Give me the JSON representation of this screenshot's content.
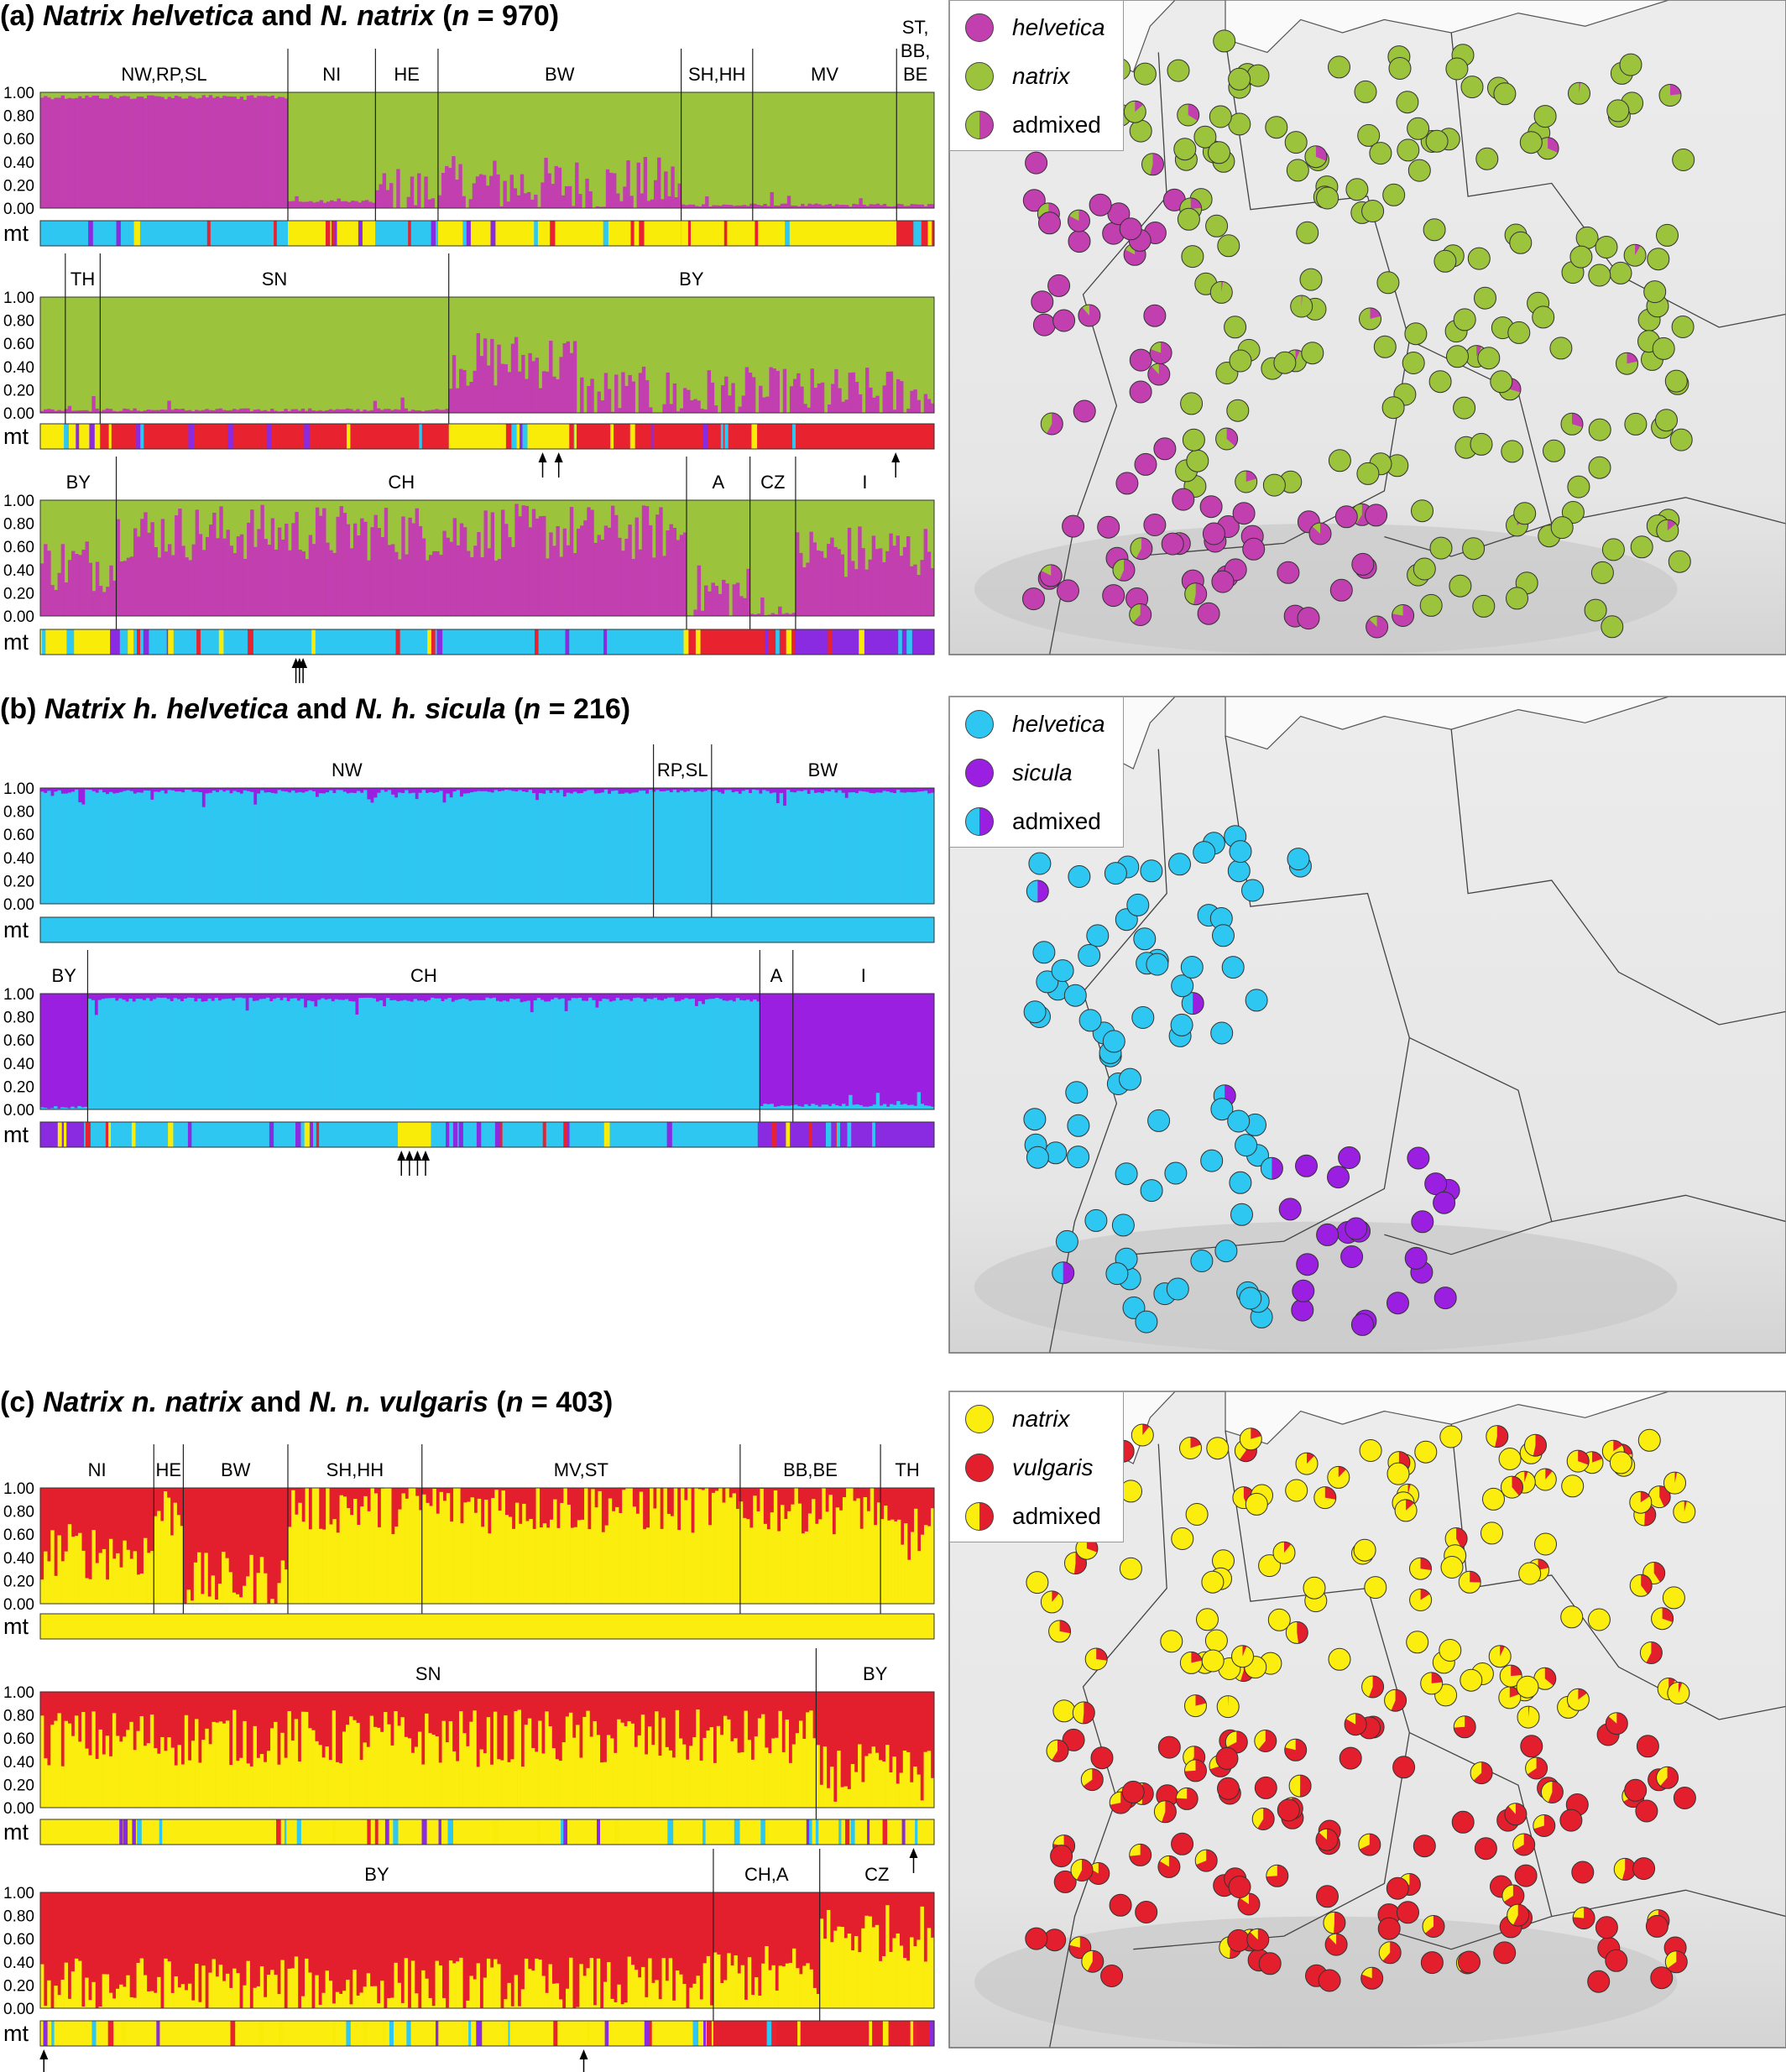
{
  "colors": {
    "helvetica": "#c23fb0",
    "natrix_green": "#9bc43c",
    "mt_cyan": "#2ec7f2",
    "mt_yellow": "#f8ec08",
    "mt_red": "#e8222e",
    "mt_purple": "#8a2be2",
    "sicula": "#9a1fe0",
    "natrix_yellow": "#fbee0e",
    "vulgaris": "#e41f2d"
  },
  "panels": [
    {
      "id": "a",
      "title_prefix": "(a) ",
      "title_s1": "Natrix helvetica",
      "title_mid": " and ",
      "title_s2": "N. natrix",
      "title_n_open": " (",
      "title_n_label": "n",
      "title_n_value": " = 970)",
      "legend": [
        {
          "label": "helvetica",
          "italic": true,
          "type": "helvetica"
        },
        {
          "label": "natrix",
          "italic": true,
          "type": "natrix_green"
        },
        {
          "label": "admixed",
          "italic": false,
          "type": "admixed_a"
        }
      ]
    },
    {
      "id": "b",
      "title_prefix": "(b) ",
      "title_s1": "Natrix h. helvetica",
      "title_mid": " and ",
      "title_s2": "N. h. sicula",
      "title_n_open": " (",
      "title_n_label": "n",
      "title_n_value": " = 216)",
      "legend": [
        {
          "label": "helvetica",
          "italic": true,
          "type": "mt_cyan"
        },
        {
          "label": "sicula",
          "italic": true,
          "type": "sicula"
        },
        {
          "label": "admixed",
          "italic": false,
          "type": "admixed_b"
        }
      ]
    },
    {
      "id": "c",
      "title_prefix": "(c) ",
      "title_s1": "Natrix n. natrix",
      "title_mid": " and ",
      "title_s2": "N. n. vulgaris",
      "title_n_open": " (",
      "title_n_label": "n",
      "title_n_value": " = 403)",
      "legend": [
        {
          "label": "natrix",
          "italic": true,
          "type": "natrix_yellow"
        },
        {
          "label": "vulgaris",
          "italic": true,
          "type": "vulgaris"
        },
        {
          "label": "admixed",
          "italic": false,
          "type": "admixed_c"
        }
      ]
    }
  ],
  "chart_data": [
    {
      "type": "bar",
      "subtype": "structure-plot",
      "panel": "a",
      "row": 1,
      "ylim": [
        0,
        1
      ],
      "yticks": [
        "1.00",
        "0.80",
        "0.60",
        "0.40",
        "0.20",
        "0.00"
      ],
      "mt_label": "mt",
      "bg_color": "natrix_green",
      "fg_color": "helvetica",
      "groups": [
        {
          "label": "NW,RP,SL",
          "start": 0.0,
          "end": 0.277
        },
        {
          "label": "NI",
          "start": 0.277,
          "end": 0.375
        },
        {
          "label": "HE",
          "start": 0.375,
          "end": 0.445
        },
        {
          "label": "BW",
          "start": 0.445,
          "end": 0.717
        },
        {
          "label": "SH,HH",
          "start": 0.717,
          "end": 0.797
        },
        {
          "label": "MV",
          "start": 0.797,
          "end": 0.958
        },
        {
          "label": "ST,\nBB,\nBE",
          "start": 0.958,
          "end": 1.0
        }
      ],
      "admixture_segments": [
        {
          "start": 0.0,
          "end": 0.277,
          "value": 0.98
        },
        {
          "start": 0.277,
          "end": 0.375,
          "value": 0.04
        },
        {
          "start": 0.375,
          "end": 0.445,
          "value": 0.12
        },
        {
          "start": 0.445,
          "end": 0.717,
          "value": 0.2
        },
        {
          "start": 0.717,
          "end": 1.0,
          "value": 0.01
        }
      ],
      "mt_segments": [
        {
          "start": 0.0,
          "end": 0.277,
          "color": "mt_cyan"
        },
        {
          "start": 0.277,
          "end": 0.375,
          "color": "mt_yellow"
        },
        {
          "start": 0.375,
          "end": 0.445,
          "color": "mt_cyan"
        },
        {
          "start": 0.445,
          "end": 0.717,
          "color": "mt_yellow"
        },
        {
          "start": 0.717,
          "end": 0.958,
          "color": "mt_yellow"
        },
        {
          "start": 0.958,
          "end": 1.0,
          "color": "mt_red"
        }
      ],
      "arrows": []
    },
    {
      "type": "bar",
      "subtype": "structure-plot",
      "panel": "a",
      "row": 2,
      "ylim": [
        0,
        1
      ],
      "yticks": [
        "1.00",
        "0.80",
        "0.60",
        "0.40",
        "0.20",
        "0.00"
      ],
      "mt_label": "mt",
      "bg_color": "natrix_green",
      "fg_color": "helvetica",
      "groups": [
        {
          "label": "TH",
          "start": 0.028,
          "end": 0.067
        },
        {
          "label": "SN",
          "start": 0.067,
          "end": 0.457
        },
        {
          "label": "BY",
          "start": 0.457,
          "end": 1.0
        }
      ],
      "admixture_segments": [
        {
          "start": 0.0,
          "end": 0.457,
          "value": 0.01
        },
        {
          "start": 0.457,
          "end": 0.6,
          "value": 0.45
        },
        {
          "start": 0.6,
          "end": 1.0,
          "value": 0.15
        }
      ],
      "mt_segments": [
        {
          "start": 0.0,
          "end": 0.067,
          "color": "mt_yellow"
        },
        {
          "start": 0.067,
          "end": 0.457,
          "color": "mt_red"
        },
        {
          "start": 0.457,
          "end": 0.6,
          "color": "mt_yellow"
        },
        {
          "start": 0.6,
          "end": 1.0,
          "color": "mt_red"
        }
      ],
      "arrows": [
        0.562,
        0.58,
        0.957
      ]
    },
    {
      "type": "bar",
      "subtype": "structure-plot",
      "panel": "a",
      "row": 3,
      "ylim": [
        0,
        1
      ],
      "yticks": [
        "1.00",
        "0.80",
        "0.60",
        "0.40",
        "0.20",
        "0.00"
      ],
      "mt_label": "mt",
      "bg_color": "natrix_green",
      "fg_color": "helvetica",
      "groups": [
        {
          "label": "BY",
          "start": 0.0,
          "end": 0.085
        },
        {
          "label": "CH",
          "start": 0.085,
          "end": 0.723
        },
        {
          "label": "A",
          "start": 0.723,
          "end": 0.794
        },
        {
          "label": "CZ",
          "start": 0.794,
          "end": 0.845
        },
        {
          "label": "I",
          "start": 0.845,
          "end": 1.0
        }
      ],
      "admixture_segments": [
        {
          "start": 0.0,
          "end": 0.085,
          "value": 0.45
        },
        {
          "start": 0.085,
          "end": 0.723,
          "value": 0.72
        },
        {
          "start": 0.723,
          "end": 0.794,
          "value": 0.2
        },
        {
          "start": 0.794,
          "end": 0.845,
          "value": 0.0
        },
        {
          "start": 0.845,
          "end": 1.0,
          "value": 0.55
        }
      ],
      "mt_segments": [
        {
          "start": 0.0,
          "end": 0.085,
          "color": "mt_yellow"
        },
        {
          "start": 0.085,
          "end": 0.723,
          "color": "mt_cyan"
        },
        {
          "start": 0.723,
          "end": 0.845,
          "color": "mt_red"
        },
        {
          "start": 0.845,
          "end": 1.0,
          "color": "mt_purple"
        }
      ],
      "arrows": [
        0.286,
        0.29,
        0.294
      ]
    },
    {
      "type": "bar",
      "subtype": "structure-plot",
      "panel": "b",
      "row": 1,
      "ylim": [
        0,
        1
      ],
      "yticks": [
        "1.00",
        "0.80",
        "0.60",
        "0.40",
        "0.20",
        "0.00"
      ],
      "mt_label": "mt",
      "bg_color": "sicula",
      "fg_color": "mt_cyan",
      "groups": [
        {
          "label": "NW",
          "start": 0.0,
          "end": 0.686
        },
        {
          "label": "RP,SL",
          "start": 0.686,
          "end": 0.751
        },
        {
          "label": "BW",
          "start": 0.751,
          "end": 1.0
        }
      ],
      "admixture_segments": [
        {
          "start": 0.0,
          "end": 1.0,
          "value": 0.99
        }
      ],
      "mt_segments": [
        {
          "start": 0.0,
          "end": 1.0,
          "color": "mt_cyan"
        }
      ],
      "arrows": []
    },
    {
      "type": "bar",
      "subtype": "structure-plot",
      "panel": "b",
      "row": 2,
      "ylim": [
        0,
        1
      ],
      "yticks": [
        "1.00",
        "0.80",
        "0.60",
        "0.40",
        "0.20",
        "0.00"
      ],
      "mt_label": "mt",
      "bg_color": "sicula",
      "fg_color": "mt_cyan",
      "groups": [
        {
          "label": "BY",
          "start": 0.0,
          "end": 0.053
        },
        {
          "label": "CH",
          "start": 0.053,
          "end": 0.805
        },
        {
          "label": "A",
          "start": 0.805,
          "end": 0.842
        },
        {
          "label": "I",
          "start": 0.842,
          "end": 1.0
        }
      ],
      "admixture_segments": [
        {
          "start": 0.0,
          "end": 0.053,
          "value": 0.0
        },
        {
          "start": 0.053,
          "end": 0.805,
          "value": 0.97
        },
        {
          "start": 0.805,
          "end": 1.0,
          "value": 0.02
        }
      ],
      "mt_segments": [
        {
          "start": 0.0,
          "end": 0.053,
          "color": "mt_purple"
        },
        {
          "start": 0.053,
          "end": 0.4,
          "color": "mt_cyan"
        },
        {
          "start": 0.4,
          "end": 0.437,
          "color": "mt_yellow"
        },
        {
          "start": 0.437,
          "end": 0.805,
          "color": "mt_cyan"
        },
        {
          "start": 0.805,
          "end": 1.0,
          "color": "mt_purple"
        }
      ],
      "arrows": [
        0.404,
        0.413,
        0.422,
        0.431
      ]
    },
    {
      "type": "bar",
      "subtype": "structure-plot",
      "panel": "c",
      "row": 1,
      "ylim": [
        0,
        1
      ],
      "yticks": [
        "1.00",
        "0.80",
        "0.60",
        "0.40",
        "0.20",
        "0.00"
      ],
      "mt_label": "mt",
      "bg_color": "vulgaris",
      "fg_color": "natrix_yellow",
      "groups": [
        {
          "label": "NI",
          "start": 0.0,
          "end": 0.127
        },
        {
          "label": "HE",
          "start": 0.127,
          "end": 0.16
        },
        {
          "label": "BW",
          "start": 0.16,
          "end": 0.277
        },
        {
          "label": "SH,HH",
          "start": 0.277,
          "end": 0.427
        },
        {
          "label": "MV,ST",
          "start": 0.427,
          "end": 0.783
        },
        {
          "label": "BB,BE",
          "start": 0.783,
          "end": 0.94
        },
        {
          "label": "TH",
          "start": 0.94,
          "end": 1.0
        }
      ],
      "admixture_segments": [
        {
          "start": 0.0,
          "end": 0.127,
          "value": 0.45
        },
        {
          "start": 0.127,
          "end": 0.16,
          "value": 0.8
        },
        {
          "start": 0.16,
          "end": 0.277,
          "value": 0.2
        },
        {
          "start": 0.277,
          "end": 0.94,
          "value": 0.85
        },
        {
          "start": 0.94,
          "end": 1.0,
          "value": 0.6
        }
      ],
      "mt_segments": [
        {
          "start": 0.0,
          "end": 1.0,
          "color": "natrix_yellow"
        }
      ],
      "arrows": []
    },
    {
      "type": "bar",
      "subtype": "structure-plot",
      "panel": "c",
      "row": 2,
      "ylim": [
        0,
        1
      ],
      "yticks": [
        "1.00",
        "0.80",
        "0.60",
        "0.40",
        "0.20",
        "0.00"
      ],
      "mt_label": "mt",
      "bg_color": "vulgaris",
      "fg_color": "natrix_yellow",
      "groups": [
        {
          "label": "SN",
          "start": 0.0,
          "end": 0.868
        },
        {
          "label": "BY",
          "start": 0.868,
          "end": 1.0
        }
      ],
      "admixture_segments": [
        {
          "start": 0.0,
          "end": 0.868,
          "value": 0.6
        },
        {
          "start": 0.868,
          "end": 1.0,
          "value": 0.3
        }
      ],
      "mt_segments": [
        {
          "start": 0.0,
          "end": 1.0,
          "color": "natrix_yellow"
        }
      ],
      "arrows": [
        0.977
      ]
    },
    {
      "type": "bar",
      "subtype": "structure-plot",
      "panel": "c",
      "row": 3,
      "ylim": [
        0,
        1
      ],
      "yticks": [
        "1.00",
        "0.80",
        "0.60",
        "0.40",
        "0.20",
        "0.00"
      ],
      "mt_label": "mt",
      "bg_color": "vulgaris",
      "fg_color": "natrix_yellow",
      "groups": [
        {
          "label": "BY",
          "start": 0.0,
          "end": 0.753
        },
        {
          "label": "CH,A",
          "start": 0.753,
          "end": 0.872
        },
        {
          "label": "CZ",
          "start": 0.872,
          "end": 1.0
        }
      ],
      "admixture_segments": [
        {
          "start": 0.0,
          "end": 0.753,
          "value": 0.2
        },
        {
          "start": 0.753,
          "end": 0.872,
          "value": 0.3
        },
        {
          "start": 0.872,
          "end": 1.0,
          "value": 0.65
        }
      ],
      "mt_segments": [
        {
          "start": 0.0,
          "end": 0.753,
          "color": "natrix_yellow"
        },
        {
          "start": 0.753,
          "end": 1.0,
          "color": "vulgaris"
        }
      ],
      "arrows": [
        0.004,
        0.608
      ]
    }
  ]
}
